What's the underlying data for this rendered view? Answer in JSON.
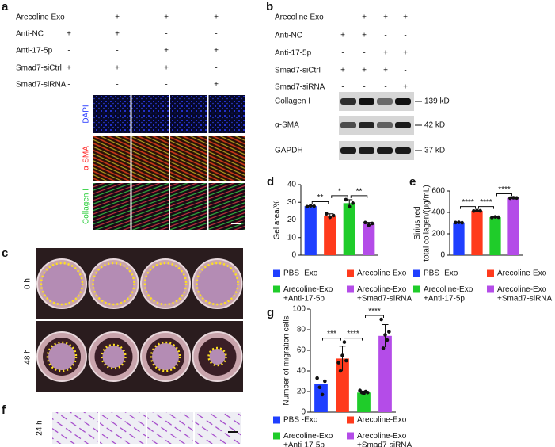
{
  "figure": {
    "a": {
      "letter": "a",
      "treatments": [
        {
          "label": "Arecoline Exo",
          "marks": [
            "-",
            "+",
            "+",
            "+"
          ]
        },
        {
          "label": "Anti-NC",
          "marks": [
            "+",
            "+",
            "-",
            "-"
          ]
        },
        {
          "label": "Anti-17-5p",
          "marks": [
            "-",
            "-",
            "+",
            "+"
          ]
        },
        {
          "label": "Smad7-siCtrl",
          "marks": [
            "+",
            "+",
            "+",
            "-"
          ]
        },
        {
          "label": "Smad7-siRNA",
          "marks": [
            "-",
            "-",
            "-",
            "+"
          ]
        }
      ],
      "stains": [
        "DAPI",
        "α-SMA",
        "Collagen I"
      ]
    },
    "b": {
      "letter": "b",
      "treatments": [
        {
          "label": "Arecoline Exo",
          "marks": [
            "-",
            "+",
            "+",
            "+"
          ]
        },
        {
          "label": "Anti-NC",
          "marks": [
            "+",
            "+",
            "-",
            "-"
          ]
        },
        {
          "label": "Anti-17-5p",
          "marks": [
            "-",
            "-",
            "+",
            "+"
          ]
        },
        {
          "label": "Smad7-siCtrl",
          "marks": [
            "+",
            "+",
            "+",
            "-"
          ]
        },
        {
          "label": "Smad7-siRNA",
          "marks": [
            "-",
            "-",
            "-",
            "+"
          ]
        }
      ],
      "blots": [
        {
          "label": "Collagen I",
          "size": "139 kD"
        },
        {
          "label": "α-SMA",
          "size": "42 kD"
        },
        {
          "label": "GAPDH",
          "size": "37 kD"
        }
      ]
    },
    "c": {
      "letter": "c",
      "times": [
        "0 h",
        "48 h"
      ]
    },
    "f": {
      "letter": "f",
      "time": "24 h"
    }
  },
  "chart_data": [
    {
      "type": "bar",
      "panel": "d",
      "ylabel": "Gel area/%",
      "ylim": [
        0,
        40
      ],
      "yticks": [
        0,
        10,
        20,
        30,
        40
      ],
      "series": [
        {
          "name": "PBS -Exo",
          "color": "#1f3fff",
          "values": [
            27.8
          ],
          "errors": [
            0.3
          ],
          "points": [
            27.5,
            28,
            27.8
          ]
        },
        {
          "name": "Arecoline-Exo",
          "color": "#ff3a1c",
          "values": [
            22.5
          ],
          "errors": [
            1.0
          ],
          "points": [
            23.5,
            21.5,
            22.5
          ]
        },
        {
          "name": "Arecoline-Exo\n+Anti-17-5p",
          "color": "#1fcc2a",
          "values": [
            29.5
          ],
          "errors": [
            2.0
          ],
          "points": [
            31.5,
            27.5,
            29.5
          ]
        },
        {
          "name": "Arecoline-Exo\n+Smad7-siRNA",
          "color": "#b44ce8",
          "values": [
            17.8
          ],
          "errors": [
            0.8
          ],
          "points": [
            18.5,
            17,
            18
          ]
        }
      ],
      "annotations": [
        "**",
        "*",
        "**"
      ]
    },
    {
      "type": "bar",
      "panel": "e",
      "ylabel": "Sirius red\ntotal collagen/(μg/mL)",
      "ylim": [
        0,
        600
      ],
      "yticks": [
        0,
        200,
        400,
        600
      ],
      "series": [
        {
          "name": "PBS -Exo",
          "color": "#1f3fff",
          "values": [
            305
          ],
          "errors": [
            2
          ],
          "points": [
            305,
            307,
            303
          ]
        },
        {
          "name": "Arecoline-Exo",
          "color": "#ff3a1c",
          "values": [
            415
          ],
          "errors": [
            3
          ],
          "points": [
            413,
            417,
            414
          ]
        },
        {
          "name": "Arecoline-Exo\n+Anti-17-5p",
          "color": "#1fcc2a",
          "values": [
            355
          ],
          "errors": [
            3
          ],
          "points": [
            352,
            358,
            355
          ]
        },
        {
          "name": "Arecoline-Exo\n+Smad7-siRNA",
          "color": "#b44ce8",
          "values": [
            535
          ],
          "errors": [
            2
          ],
          "points": [
            533,
            537,
            535
          ]
        }
      ],
      "annotations": [
        "****",
        "****",
        "****"
      ]
    },
    {
      "type": "bar",
      "panel": "g",
      "ylabel": "Number of migration cells",
      "ylim": [
        0,
        100
      ],
      "yticks": [
        0,
        20,
        40,
        60,
        80,
        100
      ],
      "series": [
        {
          "name": "PBS -Exo",
          "color": "#1f3fff",
          "values": [
            27
          ],
          "errors": [
            8
          ],
          "points": [
            33,
            24,
            17,
            30
          ]
        },
        {
          "name": "Arecoline-Exo",
          "color": "#ff3a1c",
          "values": [
            52
          ],
          "errors": [
            12
          ],
          "points": [
            48,
            40,
            55,
            68,
            50
          ]
        },
        {
          "name": "Arecoline-Exo\n+Anti-17-5p",
          "color": "#1fcc2a",
          "values": [
            19
          ],
          "errors": [
            1.5
          ],
          "points": [
            21,
            19,
            18,
            20,
            19
          ]
        },
        {
          "name": "Arecoline-Exo\n+Smad7-siRNA",
          "color": "#b44ce8",
          "values": [
            74
          ],
          "errors": [
            11
          ],
          "points": [
            90,
            62,
            75,
            70,
            78
          ]
        }
      ],
      "annotations": [
        "***",
        "****",
        "****"
      ]
    }
  ]
}
